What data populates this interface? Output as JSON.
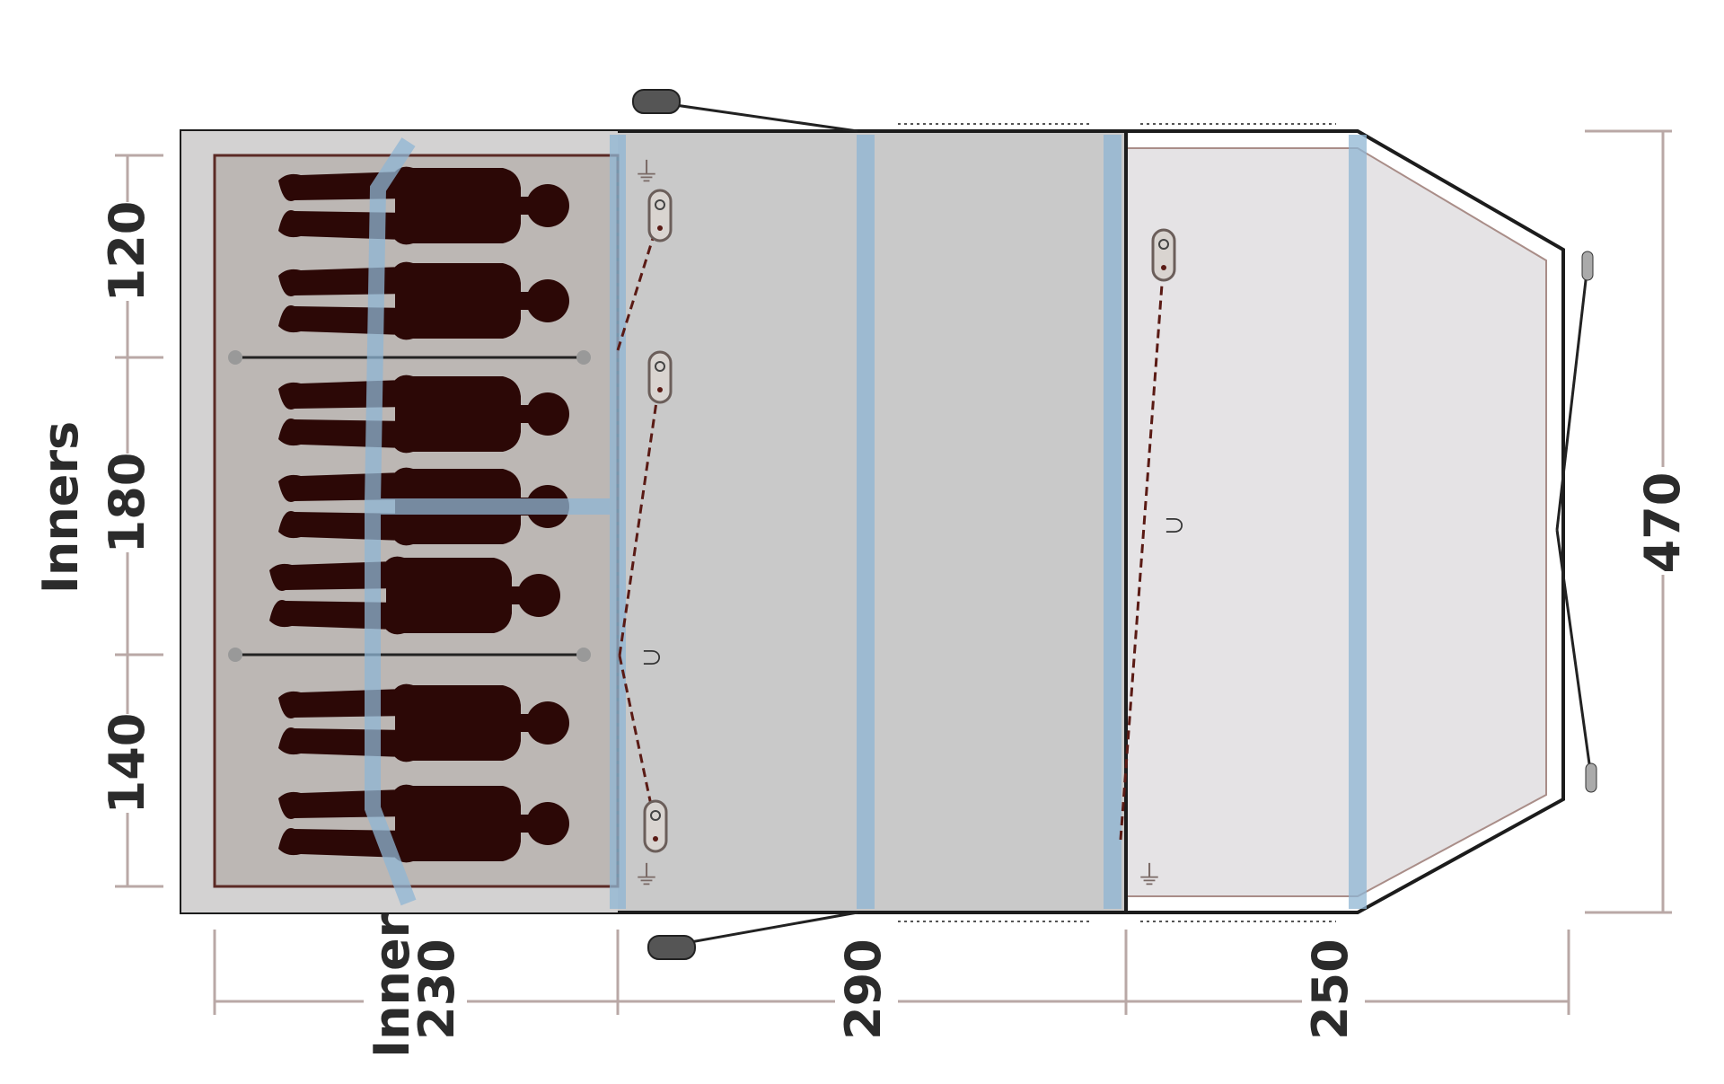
{
  "labels": {
    "inners_label": "Inners",
    "inner_widths": [
      "120",
      "180",
      "140"
    ],
    "overall_width": "470",
    "inner_label": "Inner",
    "inner_depth": "230",
    "living_depth": "290",
    "porch_depth": "250"
  },
  "occupants": 7,
  "colors": {
    "silhouette": "#2c0806",
    "pole": "#8fb6d4",
    "living_area": "#c9c9c9",
    "inner_tent": "#bcb7b4",
    "porch": "#e5e3e5",
    "outline": "#1c1c1c"
  }
}
